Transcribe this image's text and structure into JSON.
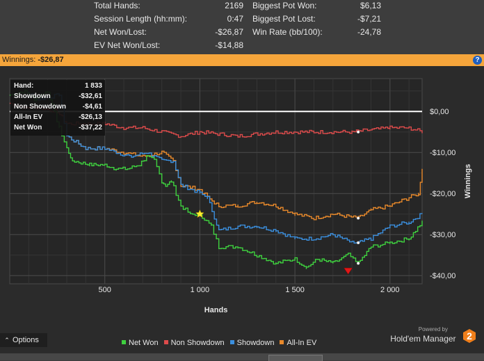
{
  "stats": {
    "left": [
      {
        "label": "Total Hands:",
        "value": "2169"
      },
      {
        "label": "Session Length (hh:mm):",
        "value": "0:47"
      },
      {
        "label": "Net Won/Lost:",
        "value": "-$26,87"
      },
      {
        "label": "EV Net Won/Lost:",
        "value": "-$14,88"
      }
    ],
    "right": [
      {
        "label": "Biggest Pot Won:",
        "value": "$6,13"
      },
      {
        "label": "Biggest Pot Lost:",
        "value": "-$7,21"
      },
      {
        "label": "Win Rate (bb/100):",
        "value": "-24,78"
      }
    ]
  },
  "winnings_bar": {
    "label": "Winnings:",
    "value": "-$26,87",
    "help_icon": "?"
  },
  "tooltip": {
    "hand_label": "Hand:",
    "hand_value": "1 833",
    "rows": [
      {
        "label": "Showdown",
        "value": "-$32,61"
      },
      {
        "label": "Non Showdown",
        "value": "-$4,61"
      },
      {
        "label": "All-In EV",
        "value": "-$26,13"
      },
      {
        "label": "Net Won",
        "value": "-$37,22"
      }
    ]
  },
  "options_label": "Options",
  "brand": {
    "powered_by": "Powered by",
    "name": "Hold'em Manager",
    "logo_text": "2"
  },
  "chart_data": {
    "type": "line",
    "xlabel": "Hands",
    "ylabel": "Winnings",
    "xlim": [
      0,
      2169
    ],
    "ylim": [
      -42,
      8
    ],
    "x_ticks": [
      500,
      1000,
      1500,
      2000
    ],
    "x_tick_labels": [
      "500",
      "1 000",
      "1 500",
      "2 000"
    ],
    "y_ticks": [
      0,
      -10,
      -20,
      -30,
      -40
    ],
    "y_tick_labels": [
      "$0,00",
      "-$10,00",
      "-$20,00",
      "-$30,00",
      "-$40,00"
    ],
    "grid": true,
    "legend_position": "bottom",
    "colors": {
      "net_won": "#3fd13f",
      "non_showdown": "#dd4b4b",
      "showdown": "#3b8fde",
      "all_in_ev": "#e8892b",
      "background": "#2b2b2b",
      "grid": "#3c3c3c",
      "zero_line": "#ffffff"
    },
    "series": [
      {
        "name": "Net Won",
        "color": "#3fd13f",
        "x": [
          0,
          80,
          130,
          200,
          260,
          300,
          330,
          420,
          500,
          560,
          620,
          680,
          720,
          760,
          800,
          820,
          850,
          900,
          950,
          1000,
          1060,
          1100,
          1200,
          1300,
          1400,
          1500,
          1560,
          1620,
          1700,
          1780,
          1833,
          1900,
          2000,
          2100,
          2169
        ],
        "y": [
          4,
          5,
          3,
          5,
          -4,
          -9,
          -12,
          -13,
          -13,
          -14,
          -14,
          -13,
          -11,
          -12,
          -17,
          -18,
          -17,
          -23,
          -25,
          -25,
          -28,
          -33,
          -33,
          -35,
          -37,
          -36,
          -38,
          -36,
          -37,
          -35,
          -37,
          -33,
          -32,
          -31,
          -27
        ]
      },
      {
        "name": "Non Showdown",
        "color": "#dd4b4b",
        "x": [
          0,
          80,
          150,
          250,
          300,
          400,
          500,
          600,
          700,
          800,
          900,
          1000,
          1200,
          1400,
          1600,
          1800,
          2000,
          2100,
          2169
        ],
        "y": [
          2,
          1,
          1,
          0,
          -3,
          -3,
          -3,
          -4,
          -4,
          -5,
          -6,
          -5,
          -6,
          -5,
          -5,
          -5,
          -4,
          -4,
          -5
        ]
      },
      {
        "name": "Showdown",
        "color": "#3b8fde",
        "x": [
          0,
          80,
          150,
          260,
          300,
          400,
          500,
          560,
          640,
          720,
          760,
          800,
          860,
          900,
          960,
          1000,
          1040,
          1100,
          1200,
          1300,
          1400,
          1500,
          1600,
          1700,
          1800,
          1833,
          1900,
          2000,
          2100,
          2169
        ],
        "y": [
          4,
          5,
          3,
          4,
          -6,
          -9,
          -9,
          -10,
          -11,
          -10,
          -11,
          -12,
          -12,
          -18,
          -19,
          -20,
          -21,
          -29,
          -28,
          -28,
          -29,
          -31,
          -31,
          -30,
          -32,
          -32,
          -31,
          -28,
          -27,
          -25
        ]
      },
      {
        "name": "All-In EV",
        "color": "#e8892b",
        "x": [
          0,
          80,
          150,
          260,
          300,
          400,
          500,
          600,
          700,
          800,
          860,
          900,
          1000,
          1040,
          1100,
          1200,
          1300,
          1400,
          1500,
          1600,
          1700,
          1833,
          1900,
          2000,
          2100,
          2150,
          2169
        ],
        "y": [
          4,
          5,
          3,
          4,
          -6,
          -9,
          -9,
          -10,
          -11,
          -10,
          -12,
          -18,
          -19,
          -21,
          -23,
          -23,
          -22,
          -23,
          -25,
          -26,
          -25,
          -26,
          -24,
          -23,
          -21,
          -20,
          -14
        ]
      }
    ],
    "markers": [
      {
        "name": "star",
        "x": 1000,
        "y": -25
      },
      {
        "name": "red-triangle",
        "x": 1780,
        "y": -39
      }
    ]
  }
}
